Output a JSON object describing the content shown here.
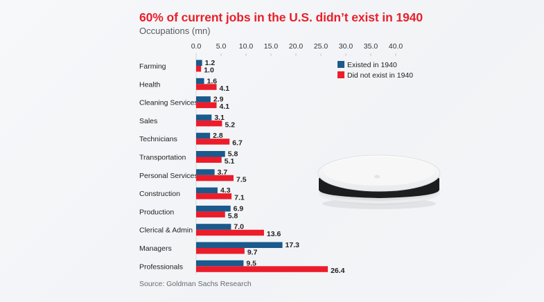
{
  "title": "60% of current jobs in the U.S. didn’t exist in 1940",
  "subtitle": "Occupations (mn)",
  "source": "Source: Goldman Sachs Research",
  "colors": {
    "existed": "#1a5a8c",
    "did_not_exist": "#ec1c2a",
    "title": "#e8202a"
  },
  "chart_data": {
    "type": "bar",
    "orientation": "horizontal",
    "title": "60% of current jobs in the U.S. didn’t exist in 1940",
    "subtitle": "Occupations (mn)",
    "xlabel": "",
    "ylabel": "",
    "xlim": [
      0,
      40
    ],
    "xticks": [
      "0.0",
      "5.0",
      "10.0",
      "15.0",
      "20.0",
      "25.0",
      "30.0",
      "35.0",
      "40.0"
    ],
    "xtick_values": [
      0,
      5,
      10,
      15,
      20,
      25,
      30,
      35,
      40
    ],
    "grid": false,
    "legend_position": "top-right",
    "categories": [
      "Farming",
      "Health",
      "Cleaning Services",
      "Sales",
      "Technicians",
      "Transportation",
      "Personal Services",
      "Construction",
      "Production",
      "Clerical & Admin",
      "Managers",
      "Professionals"
    ],
    "series": [
      {
        "name": "Existed in 1940",
        "values": [
          1.2,
          1.6,
          2.9,
          3.1,
          2.8,
          5.8,
          3.7,
          4.3,
          6.9,
          7.0,
          17.3,
          9.5
        ]
      },
      {
        "name": "Did not exist in 1940",
        "values": [
          1.0,
          4.1,
          4.1,
          5.2,
          6.7,
          5.1,
          7.5,
          7.1,
          5.8,
          13.6,
          9.7,
          26.4
        ]
      }
    ]
  },
  "image": {
    "description": "robot vacuum cleaner",
    "icon": "robot-vacuum-icon"
  }
}
